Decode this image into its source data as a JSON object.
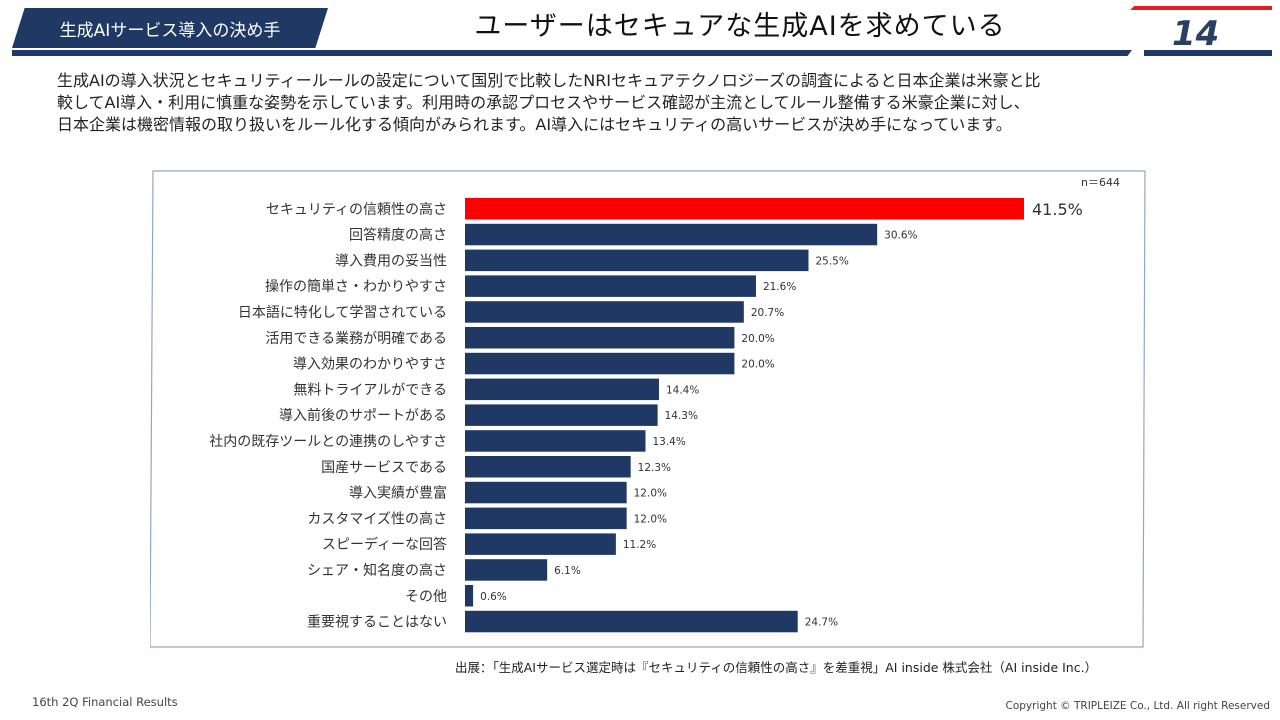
{
  "header": {
    "section_label": "生成AIサービス導入の決め手",
    "title": "ユーザーはセキュアな生成AIを求めている",
    "page_number": "14"
  },
  "description": [
    "生成AIの導入状況とセキュリティールールの設定について国別で比較したNRIセキュアテクノロジーズの調査によると日本企業は米豪と比",
    "較してAI導入・利用に慎重な姿勢を示しています。利用時の承認プロセスやサービス確認が主流としてルール整備する米豪企業に対し、",
    "日本企業は機密情報の取り扱いをルール化する傾向がみられます。AI導入にはセキュリティの高いサービスが決め手になっています。"
  ],
  "chart_data": {
    "type": "bar",
    "orientation": "horizontal",
    "sample_note": "n＝644",
    "categories": [
      "セキュリティの信頼性の高さ",
      "回答精度の高さ",
      "導入費用の妥当性",
      "操作の簡単さ・わかりやすさ",
      "日本語に特化して学習されている",
      "活用できる業務が明確である",
      "導入効果のわかりやすさ",
      "無料トライアルができる",
      "導入前後のサポートがある",
      "社内の既存ツールとの連携のしやすさ",
      "国産サービスである",
      "導入実績が豊富",
      "カスタマイズ性の高さ",
      "スピーディーな回答",
      "シェア・知名度の高さ",
      "その他",
      "重要視することはない"
    ],
    "values": [
      41.5,
      30.6,
      25.5,
      21.6,
      20.7,
      20.0,
      20.0,
      14.4,
      14.3,
      13.4,
      12.3,
      12.0,
      12.0,
      11.2,
      6.1,
      0.6,
      24.7
    ],
    "value_labels": [
      "41.5%",
      "30.6%",
      "25.5%",
      "21.6%",
      "20.7%",
      "20.0%",
      "20.0%",
      "14.4%",
      "14.3%",
      "13.4%",
      "12.3%",
      "12.0%",
      "12.0%",
      "11.2%",
      "6.1%",
      "0.6%",
      "24.7%"
    ],
    "highlight_index": 0,
    "colors": {
      "bar": "#1f3864",
      "highlight": "#ff0000",
      "frame": "#8ea9c8"
    }
  },
  "source": "出展：「生成AIサービス選定時は『セキュリティの信頼性の高さ』を差重視」AI inside 株式会社（AI inside Inc.）",
  "footer": {
    "left": "16th 2Q Financial Results",
    "right": "Copyright © TRIPLEIZE Co., Ltd.  All right Reserved"
  }
}
